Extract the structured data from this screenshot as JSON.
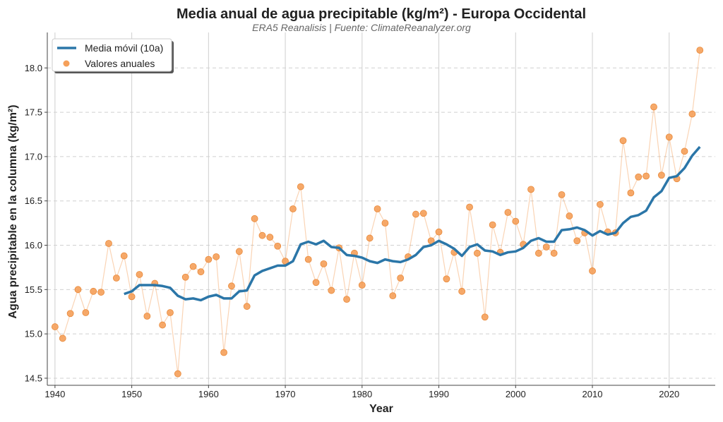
{
  "chart_data": {
    "type": "line",
    "title": "Media anual de agua precipitable (kg/m²) - Europa Occidental",
    "subtitle": "ERA5 Reanalisis | Fuente: ClimateReanalyzer.org",
    "xlabel": "Year",
    "ylabel": "Agua precipitable en la columna (kg/m²)",
    "xlim": [
      1939,
      2026
    ],
    "ylim": [
      14.42,
      18.4
    ],
    "xticks": [
      1940,
      1950,
      1960,
      1970,
      1980,
      1990,
      2000,
      2010,
      2020
    ],
    "yticks": [
      "14.5",
      "15.0",
      "15.5",
      "16.0",
      "16.5",
      "17.0",
      "17.5",
      "18.0"
    ],
    "grid": {
      "x": "solid",
      "y": "dashed"
    },
    "legend_position": "top-left",
    "series": [
      {
        "name": "Media móvil (10a)",
        "color": "#2b76a8",
        "style": "line",
        "x": [
          1949,
          1950,
          1951,
          1952,
          1953,
          1954,
          1955,
          1956,
          1957,
          1958,
          1959,
          1960,
          1961,
          1962,
          1963,
          1964,
          1965,
          1966,
          1967,
          1968,
          1969,
          1970,
          1971,
          1972,
          1973,
          1974,
          1975,
          1976,
          1977,
          1978,
          1979,
          1980,
          1981,
          1982,
          1983,
          1984,
          1985,
          1986,
          1987,
          1988,
          1989,
          1990,
          1991,
          1992,
          1993,
          1994,
          1995,
          1996,
          1997,
          1998,
          1999,
          2000,
          2001,
          2002,
          2003,
          2004,
          2005,
          2006,
          2007,
          2008,
          2009,
          2010,
          2011,
          2012,
          2013,
          2014,
          2015,
          2016,
          2017,
          2018,
          2019,
          2020,
          2021,
          2022,
          2023,
          2024
        ],
        "values": [
          15.45,
          15.48,
          15.55,
          15.55,
          15.55,
          15.54,
          15.52,
          15.43,
          15.39,
          15.4,
          15.38,
          15.42,
          15.44,
          15.4,
          15.4,
          15.48,
          15.49,
          15.66,
          15.71,
          15.74,
          15.77,
          15.77,
          15.82,
          16.01,
          16.04,
          16.01,
          16.05,
          15.98,
          15.97,
          15.89,
          15.88,
          15.86,
          15.82,
          15.8,
          15.84,
          15.82,
          15.81,
          15.84,
          15.89,
          15.98,
          16.0,
          16.05,
          16.01,
          15.96,
          15.88,
          15.98,
          16.01,
          15.94,
          15.93,
          15.89,
          15.92,
          15.93,
          15.97,
          16.05,
          16.08,
          16.04,
          16.04,
          16.17,
          16.18,
          16.2,
          16.17,
          16.11,
          16.16,
          16.12,
          16.14,
          16.25,
          16.32,
          16.34,
          16.39,
          16.54,
          16.61,
          16.76,
          16.78,
          16.87,
          17.01,
          17.11
        ]
      },
      {
        "name": "Valores anuales",
        "color": "#f5a05a",
        "style": "markers",
        "x": [
          1940,
          1941,
          1942,
          1943,
          1944,
          1945,
          1946,
          1947,
          1948,
          1949,
          1950,
          1951,
          1952,
          1953,
          1954,
          1955,
          1956,
          1957,
          1958,
          1959,
          1960,
          1961,
          1962,
          1963,
          1964,
          1965,
          1966,
          1967,
          1968,
          1969,
          1970,
          1971,
          1972,
          1973,
          1974,
          1975,
          1976,
          1977,
          1978,
          1979,
          1980,
          1981,
          1982,
          1983,
          1984,
          1985,
          1986,
          1987,
          1988,
          1989,
          1990,
          1991,
          1992,
          1993,
          1994,
          1995,
          1996,
          1997,
          1998,
          1999,
          2000,
          2001,
          2002,
          2003,
          2004,
          2005,
          2006,
          2007,
          2008,
          2009,
          2010,
          2011,
          2012,
          2013,
          2014,
          2015,
          2016,
          2017,
          2018,
          2019,
          2020,
          2021,
          2022,
          2023,
          2024
        ],
        "values": [
          15.08,
          14.95,
          15.23,
          15.5,
          15.24,
          15.48,
          15.47,
          16.02,
          15.63,
          15.88,
          15.42,
          15.67,
          15.2,
          15.57,
          15.1,
          15.24,
          14.55,
          15.64,
          15.76,
          15.7,
          15.84,
          15.87,
          14.79,
          15.54,
          15.93,
          15.31,
          16.3,
          16.11,
          16.09,
          15.99,
          15.82,
          16.41,
          16.66,
          15.84,
          15.58,
          15.79,
          15.49,
          15.97,
          15.39,
          15.91,
          15.55,
          16.08,
          16.41,
          16.25,
          15.43,
          15.63,
          15.87,
          16.35,
          16.36,
          16.05,
          16.15,
          15.62,
          15.92,
          15.48,
          16.43,
          15.91,
          15.19,
          16.23,
          15.92,
          16.37,
          16.27,
          16.01,
          16.63,
          15.91,
          15.98,
          15.91,
          16.57,
          16.33,
          16.05,
          16.14,
          15.71,
          16.46,
          16.15,
          16.14,
          17.18,
          16.59,
          16.77,
          16.78,
          17.56,
          16.79,
          17.22,
          16.75,
          17.06,
          17.48,
          18.2
        ]
      }
    ]
  }
}
